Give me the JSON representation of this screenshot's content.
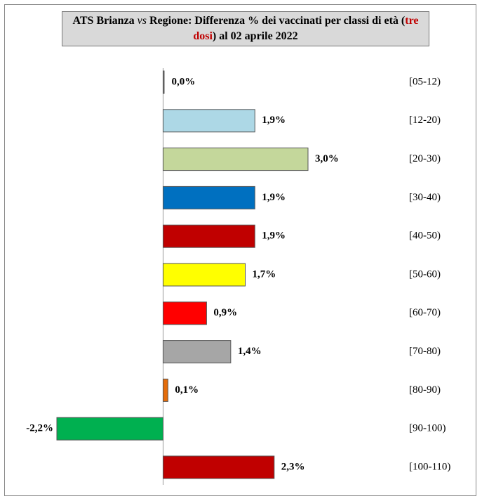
{
  "chart_data": {
    "type": "hbar",
    "title": [
      "ATS Brianza ",
      "vs",
      " Regione: Differenza % dei vaccinati per classi di età (",
      "tre dosi",
      ") al 02 aprile 2022"
    ],
    "categories": [
      "[05-12)",
      "[12-20)",
      "[20-30)",
      "[30-40)",
      "[40-50)",
      "[50-60)",
      "[60-70)",
      "[70-80)",
      "[80-90)",
      "[90-100)",
      "[100-110)"
    ],
    "values": [
      0.0,
      1.9,
      3.0,
      1.9,
      1.9,
      1.7,
      0.9,
      1.4,
      0.1,
      -2.2,
      2.3
    ],
    "value_labels": [
      "0,0%",
      "1,9%",
      "3,0%",
      "1,9%",
      "1,9%",
      "1,7%",
      "0,9%",
      "1,4%",
      "0,1%",
      "-2,2%",
      "2,3%"
    ],
    "colors": [
      "#808080",
      "#add8e6",
      "#c4d79b",
      "#0070c0",
      "#c00000",
      "#ffff00",
      "#ff0000",
      "#a6a6a6",
      "#e46c0a",
      "#00b050",
      "#c00000"
    ],
    "title_highlight_color": "#c00000"
  }
}
